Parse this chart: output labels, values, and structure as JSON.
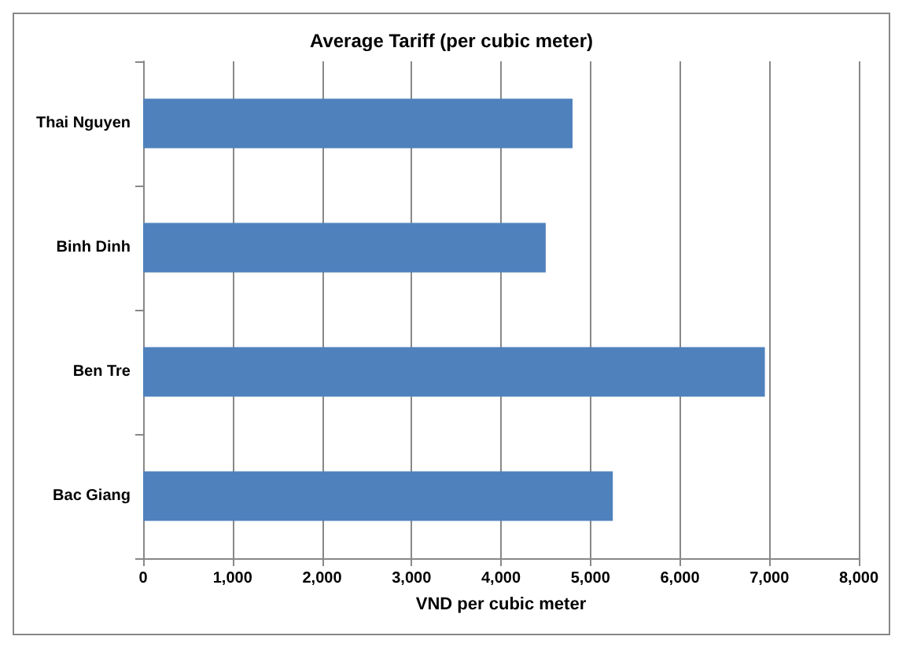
{
  "chart_data": {
    "type": "bar",
    "orientation": "horizontal",
    "title": "Average Tariff (per cubic meter)",
    "xlabel": "VND per cubic meter",
    "categories": [
      "Thai Nguyen",
      "Binh Dinh",
      "Ben Tre",
      "Bac Giang"
    ],
    "values": [
      4800,
      4500,
      6950,
      5250
    ],
    "color": "#4f81bd",
    "xlim": [
      0,
      8000
    ],
    "xticks": [
      {
        "value": 0,
        "label": "0"
      },
      {
        "value": 1000,
        "label": "1,000"
      },
      {
        "value": 2000,
        "label": "2,000"
      },
      {
        "value": 3000,
        "label": "3,000"
      },
      {
        "value": 4000,
        "label": "4,000"
      },
      {
        "value": 5000,
        "label": "5,000"
      },
      {
        "value": 6000,
        "label": "6,000"
      },
      {
        "value": 7000,
        "label": "7,000"
      },
      {
        "value": 8000,
        "label": "8,000"
      }
    ],
    "grid": "x"
  }
}
